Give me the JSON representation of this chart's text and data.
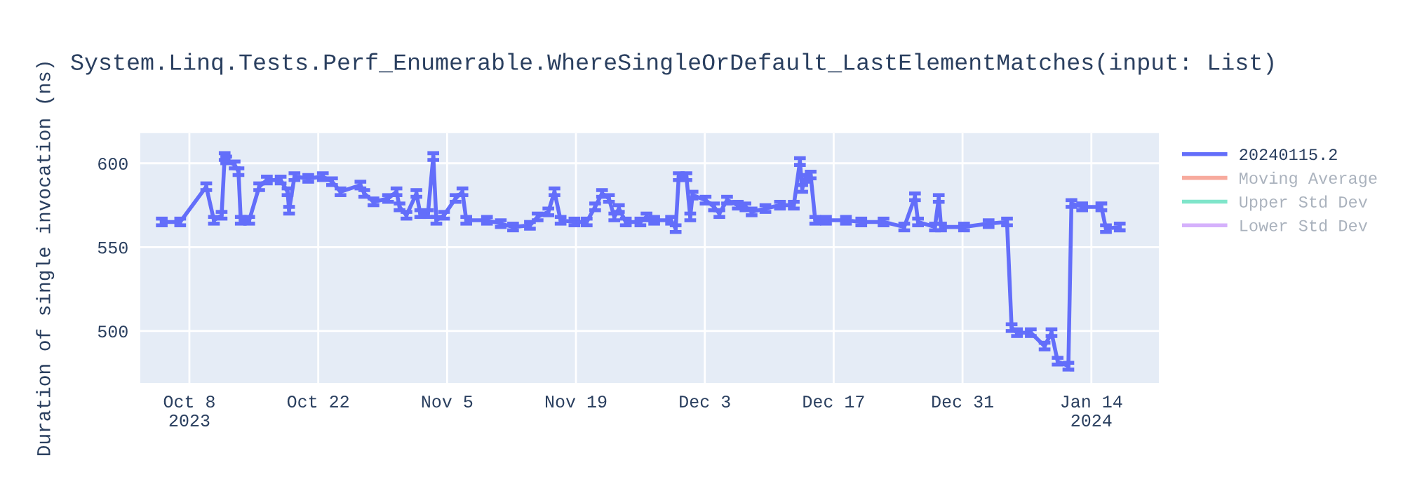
{
  "chart_data": {
    "type": "line",
    "title": "System.Linq.Tests.Perf_Enumerable.WhereSingleOrDefault_LastElementMatches(input: List)",
    "ylabel": "Duration of single invocation (ns)",
    "x": [
      "2023-10-05",
      "2023-10-07",
      "2023-10-09T20:00",
      "2023-10-10T16:00",
      "2023-10-11T12:00",
      "2023-10-11T20:00",
      "2023-10-12",
      "2023-10-12T22:00",
      "2023-10-13T08:00",
      "2023-10-13T14:00",
      "2023-10-14T12:00",
      "2023-10-15T14:00",
      "2023-10-16T10:00",
      "2023-10-17T22:00",
      "2023-10-18T16:00",
      "2023-10-18T20:00",
      "2023-10-19T10:00",
      "2023-10-20T22:00",
      "2023-10-22T12:00",
      "2023-10-23T12:00",
      "2023-10-24T10:00",
      "2023-10-26T14:00",
      "2023-10-27",
      "2023-10-28",
      "2023-10-29T14:00",
      "2023-10-30T12:00",
      "2023-10-30T20:00",
      "2023-10-31T14:00",
      "2023-11-01T16:00",
      "2023-11-02T02:00",
      "2023-11-02T22:00",
      "2023-11-03T12:00",
      "2023-11-03T20:00",
      "2023-11-04T16:00",
      "2023-11-05T22:00",
      "2023-11-06T16:00",
      "2023-11-07T02:00",
      "2023-11-09T08:00",
      "2023-11-10T20:00",
      "2023-11-12T04:00",
      "2023-11-14",
      "2023-11-14T20:00",
      "2023-11-16",
      "2023-11-16T16:00",
      "2023-11-17T08:00",
      "2023-11-18T20:00",
      "2023-11-20T04:00",
      "2023-11-21T02:00",
      "2023-11-21T20:00",
      "2023-11-22T14:00",
      "2023-11-23T04:00",
      "2023-11-23T16:00",
      "2023-11-24T10:00",
      "2023-11-26",
      "2023-11-26T16:00",
      "2023-11-27T12:00",
      "2023-11-29T08:00",
      "2023-11-29T20:00",
      "2023-11-30T04:00",
      "2023-12-01",
      "2023-12-01T10:00",
      "2023-12-01T16:00",
      "2023-12-03T02:00",
      "2023-12-04",
      "2023-12-04T14:00",
      "2023-12-05T10:00",
      "2023-12-06T14:00",
      "2023-12-07T10:00",
      "2023-12-08T02:00",
      "2023-12-09T14:00",
      "2023-12-11T04:00",
      "2023-12-12T16:00",
      "2023-12-13T08:00",
      "2023-12-13T14:00",
      "2023-12-13T22:00",
      "2023-12-14T12:00",
      "2023-12-15",
      "2023-12-16T04:00",
      "2023-12-18T08:00",
      "2023-12-20",
      "2023-12-22T10:00",
      "2023-12-24T16:00",
      "2023-12-25T20:00",
      "2023-12-26T04:00",
      "2023-12-28",
      "2023-12-28T10:00",
      "2023-12-28T16:00",
      "2023-12-31T04:00",
      "2024-01-02T20:00",
      "2024-01-04T20:00",
      "2024-01-05T08:00",
      "2024-01-05T22:00",
      "2024-01-07T10:00",
      "2024-01-08T22:00",
      "2024-01-09T16:00",
      "2024-01-10T08:00",
      "2024-01-11T12:00",
      "2024-01-11T20:00",
      "2024-01-13",
      "2024-01-15T02:00",
      "2024-01-15T14:00",
      "2024-01-17T02:00"
    ],
    "series": [
      {
        "name": "20240115.2",
        "color": "#636efa",
        "values": [
          565,
          565,
          586,
          566,
          569,
          604,
          602,
          599,
          595,
          566,
          566,
          586,
          590,
          590,
          583,
          572,
          592,
          591,
          592,
          589,
          583,
          587,
          582,
          577,
          579,
          583,
          574,
          569,
          582,
          570,
          570,
          604,
          566,
          569,
          579,
          583,
          566,
          566,
          564,
          562,
          563,
          568,
          571,
          583,
          566,
          565,
          565,
          574,
          582,
          579,
          568,
          573,
          565,
          565,
          568,
          566,
          566,
          561,
          592,
          592,
          568,
          581,
          578,
          574,
          570,
          578,
          575,
          574,
          571,
          573,
          575,
          575,
          601,
          585,
          591,
          593,
          566,
          566,
          566,
          565,
          565,
          562,
          580,
          565,
          562,
          579,
          562,
          562,
          564,
          565,
          502,
          499,
          499,
          491,
          499,
          482,
          479,
          576,
          574,
          574,
          561,
          562
        ],
        "errors": [
          2,
          2,
          2,
          2,
          2,
          2,
          2,
          2,
          2,
          2,
          2,
          2,
          2,
          2,
          2,
          2,
          2,
          2,
          2,
          2,
          2,
          2,
          2,
          2,
          2,
          2,
          2,
          2,
          2,
          2,
          2,
          2,
          2,
          2,
          2,
          2,
          2,
          2,
          2,
          2,
          2,
          2,
          2,
          2,
          2,
          2,
          2,
          2,
          2,
          2,
          2,
          2,
          2,
          2,
          2,
          2,
          2,
          2,
          2,
          2,
          2,
          2,
          2,
          2,
          2,
          2,
          2,
          2,
          2,
          2,
          2,
          2,
          2,
          2,
          2,
          2,
          2,
          2,
          2,
          2,
          2,
          2,
          2,
          2,
          2,
          2,
          2,
          2,
          2,
          2,
          2,
          2,
          2,
          2,
          2,
          2,
          2,
          2,
          2,
          2,
          2,
          2
        ]
      },
      {
        "name": "Moving Average",
        "color": "#ef553b",
        "values": [
          null,
          null,
          null,
          null,
          null,
          null,
          null,
          null,
          null,
          null,
          null,
          null,
          null,
          null,
          null,
          null,
          null,
          null,
          null,
          null,
          null,
          null,
          null,
          null,
          null,
          null,
          null,
          null,
          null,
          null,
          null,
          null,
          null,
          null,
          null,
          null,
          null,
          null,
          null,
          null,
          null,
          null,
          null,
          null,
          null,
          null,
          null,
          null,
          null,
          null,
          null,
          null,
          null,
          null,
          null,
          null,
          null,
          null,
          null,
          null,
          null,
          null,
          null,
          null,
          null,
          null,
          null,
          null,
          null,
          null,
          null,
          null,
          null,
          null,
          null,
          null,
          null,
          null,
          null,
          null,
          null,
          null,
          null,
          null,
          null,
          null,
          null,
          null,
          null,
          null,
          null,
          null,
          null,
          null,
          null,
          null,
          null,
          null,
          null,
          null,
          null,
          null
        ]
      },
      {
        "name": "Upper Std Dev",
        "color": "#00cc96",
        "values": [
          null,
          null,
          null,
          null,
          null,
          null,
          null,
          null,
          null,
          null,
          null,
          null,
          null,
          null,
          null,
          null,
          null,
          null,
          null,
          null,
          null,
          null,
          null,
          null,
          null,
          null,
          null,
          null,
          null,
          null,
          null,
          null,
          null,
          null,
          null,
          null,
          null,
          null,
          null,
          null,
          null,
          null,
          null,
          null,
          null,
          null,
          null,
          null,
          null,
          null,
          null,
          null,
          null,
          null,
          null,
          null,
          null,
          null,
          null,
          null,
          null,
          null,
          null,
          null,
          null,
          null,
          null,
          null,
          null,
          null,
          null,
          null,
          null,
          null,
          null,
          null,
          null,
          null,
          null,
          null,
          null,
          null,
          null,
          null,
          null,
          null,
          null,
          null,
          null,
          null,
          null,
          null,
          null,
          null,
          null,
          null,
          null,
          null,
          null,
          null,
          null,
          null
        ]
      },
      {
        "name": "Lower Std Dev",
        "color": "#ab63fa",
        "values": [
          null,
          null,
          null,
          null,
          null,
          null,
          null,
          null,
          null,
          null,
          null,
          null,
          null,
          null,
          null,
          null,
          null,
          null,
          null,
          null,
          null,
          null,
          null,
          null,
          null,
          null,
          null,
          null,
          null,
          null,
          null,
          null,
          null,
          null,
          null,
          null,
          null,
          null,
          null,
          null,
          null,
          null,
          null,
          null,
          null,
          null,
          null,
          null,
          null,
          null,
          null,
          null,
          null,
          null,
          null,
          null,
          null,
          null,
          null,
          null,
          null,
          null,
          null,
          null,
          null,
          null,
          null,
          null,
          null,
          null,
          null,
          null,
          null,
          null,
          null,
          null,
          null,
          null,
          null,
          null,
          null,
          null,
          null,
          null,
          null,
          null,
          null,
          null,
          null,
          null,
          null,
          null,
          null,
          null,
          null,
          null,
          null,
          null,
          null,
          null,
          null,
          null
        ]
      }
    ],
    "xlim": [
      "2023-10-02T16:00",
      "2024-01-21T08:00"
    ],
    "xticks": [
      {
        "value": "2023-10-08",
        "label": "Oct 8\n2023"
      },
      {
        "value": "2023-10-22",
        "label": "Oct 22"
      },
      {
        "value": "2023-11-05",
        "label": "Nov 5"
      },
      {
        "value": "2023-11-19",
        "label": "Nov 19"
      },
      {
        "value": "2023-12-03",
        "label": "Dec 3"
      },
      {
        "value": "2023-12-17",
        "label": "Dec 17"
      },
      {
        "value": "2023-12-31",
        "label": "Dec 31"
      },
      {
        "value": "2024-01-14",
        "label": "Jan 14\n2024"
      }
    ],
    "ylim": [
      469,
      618
    ],
    "yticks": [
      500,
      550,
      600
    ],
    "grid": true,
    "legend": "right",
    "marker": "none",
    "line_style": "solid"
  }
}
